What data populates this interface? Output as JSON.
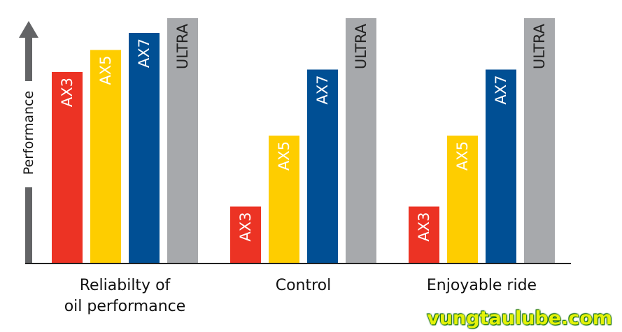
{
  "chart_data": {
    "type": "bar",
    "ylabel": "Performance",
    "ylim": [
      0,
      100
    ],
    "categories": [
      {
        "label": [
          "Reliabilty of",
          "oil performance"
        ],
        "values": [
          78,
          87,
          94,
          100
        ]
      },
      {
        "label": [
          "Control"
        ],
        "values": [
          23,
          52,
          79,
          100
        ]
      },
      {
        "label": [
          "Enjoyable ride"
        ],
        "values": [
          23,
          52,
          79,
          100
        ]
      }
    ],
    "series": [
      {
        "name": "AX3",
        "color": "#ec3324"
      },
      {
        "name": "AX5",
        "color": "#fecd00"
      },
      {
        "name": "AX7",
        "color": "#004f94"
      },
      {
        "name": "ULTRA",
        "color": "#a7a9ac"
      }
    ],
    "axis_color": "#636466"
  },
  "watermark": "vungtaulube.com"
}
